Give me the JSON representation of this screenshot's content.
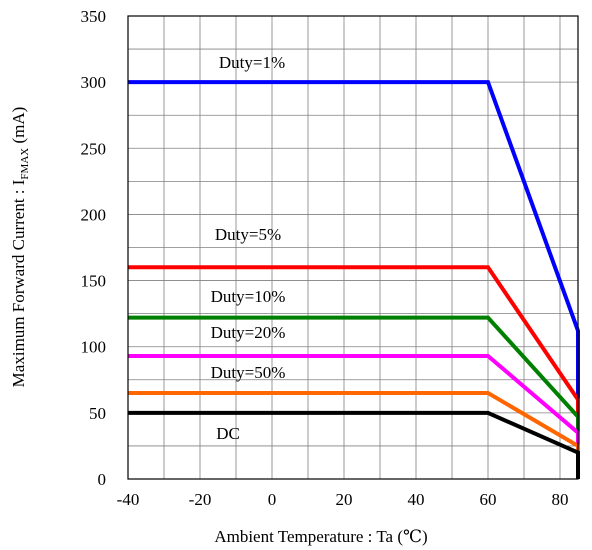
{
  "chart_data": {
    "type": "line",
    "title": "",
    "xlabel": "Ambient Temperature : Ta (℃)",
    "ylabel_main": "Maximum Forward Current : I",
    "ylabel_sub": "FMAX",
    "ylabel_unit": " (mA)",
    "xlim": [
      -40,
      85
    ],
    "ylim": [
      0,
      350
    ],
    "xticks": [
      -40,
      -20,
      0,
      20,
      40,
      60,
      80
    ],
    "yticks": [
      0,
      50,
      100,
      150,
      200,
      250,
      300,
      350
    ],
    "grid": true,
    "series": [
      {
        "name": "Duty=1%",
        "color": "#0000ff",
        "x": [
          -40,
          60,
          85,
          85
        ],
        "y": [
          300,
          300,
          112,
          0
        ]
      },
      {
        "name": "Duty=5%",
        "color": "#ff0000",
        "x": [
          -40,
          60,
          85,
          85
        ],
        "y": [
          160,
          160,
          60,
          0
        ]
      },
      {
        "name": "Duty=10%",
        "color": "#008000",
        "x": [
          -40,
          60,
          85,
          85
        ],
        "y": [
          122,
          122,
          47,
          0
        ]
      },
      {
        "name": "Duty=20%",
        "color": "#ff00ff",
        "x": [
          -40,
          60,
          85,
          85
        ],
        "y": [
          93,
          93,
          35,
          0
        ]
      },
      {
        "name": "Duty=50%",
        "color": "#ff6600",
        "x": [
          -40,
          60,
          85,
          85
        ],
        "y": [
          65,
          65,
          25,
          0
        ]
      },
      {
        "name": "DC",
        "color": "#000000",
        "x": [
          -40,
          60,
          85,
          85
        ],
        "y": [
          50,
          50,
          20,
          0
        ]
      }
    ]
  }
}
